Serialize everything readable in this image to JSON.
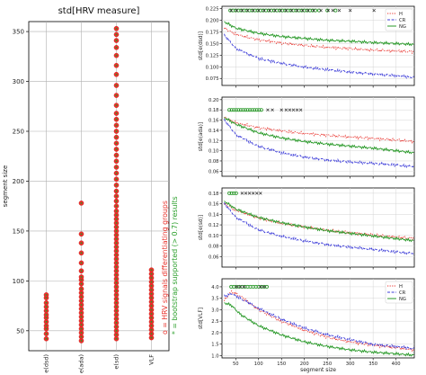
{
  "chart_data": [
    {
      "type": "scatter",
      "title": "std[HRV measure]",
      "xlabel": "",
      "ylabel": "segment size",
      "categories": [
        "e(dsd)",
        "e(ada)",
        "e(sd)",
        "VLF"
      ],
      "ylim": [
        30,
        360
      ],
      "yticks": [
        50,
        100,
        150,
        200,
        250,
        300,
        350
      ],
      "grid": true,
      "annotations": [
        {
          "text": "o = HRV signals differentiating groups",
          "color": "#e8302a"
        },
        {
          "text": "* = bootstrap supported (> 0.7) results",
          "color": "#2ca02c"
        }
      ],
      "series": [
        {
          "values": [
            [
              0,
              42
            ],
            [
              0,
              47
            ],
            [
              0,
              52
            ],
            [
              0,
              55
            ],
            [
              0,
              59
            ],
            [
              0,
              63
            ],
            [
              0,
              66
            ],
            [
              0,
              70
            ],
            [
              0,
              74
            ],
            [
              0,
              78
            ],
            [
              0,
              83
            ],
            [
              0,
              86
            ],
            [
              1,
              40
            ],
            [
              1,
              44
            ],
            [
              1,
              48
            ],
            [
              1,
              52
            ],
            [
              1,
              56
            ],
            [
              1,
              60
            ],
            [
              1,
              64
            ],
            [
              1,
              68
            ],
            [
              1,
              72
            ],
            [
              1,
              76
            ],
            [
              1,
              80
            ],
            [
              1,
              84
            ],
            [
              1,
              88
            ],
            [
              1,
              92
            ],
            [
              1,
              97
            ],
            [
              1,
              101
            ],
            [
              1,
              104
            ],
            [
              1,
              110
            ],
            [
              1,
              118
            ],
            [
              1,
              128
            ],
            [
              1,
              138
            ],
            [
              1,
              147
            ],
            [
              1,
              178
            ],
            [
              2,
              42
            ],
            [
              2,
              46
            ],
            [
              2,
              50
            ],
            [
              2,
              54
            ],
            [
              2,
              58
            ],
            [
              2,
              62
            ],
            [
              2,
              66
            ],
            [
              2,
              70
            ],
            [
              2,
              74
            ],
            [
              2,
              78
            ],
            [
              2,
              82
            ],
            [
              2,
              86
            ],
            [
              2,
              90
            ],
            [
              2,
              94
            ],
            [
              2,
              98
            ],
            [
              2,
              102
            ],
            [
              2,
              106
            ],
            [
              2,
              110
            ],
            [
              2,
              114
            ],
            [
              2,
              118
            ],
            [
              2,
              122
            ],
            [
              2,
              126
            ],
            [
              2,
              130
            ],
            [
              2,
              134
            ],
            [
              2,
              138
            ],
            [
              2,
              142
            ],
            [
              2,
              146
            ],
            [
              2,
              150
            ],
            [
              2,
              154
            ],
            [
              2,
              158
            ],
            [
              2,
              162
            ],
            [
              2,
              166
            ],
            [
              2,
              170
            ],
            [
              2,
              175
            ],
            [
              2,
              180
            ],
            [
              2,
              185
            ],
            [
              2,
              190
            ],
            [
              2,
              196
            ],
            [
              2,
              202
            ],
            [
              2,
              208
            ],
            [
              2,
              214
            ],
            [
              2,
              220
            ],
            [
              2,
              226
            ],
            [
              2,
              232
            ],
            [
              2,
              238
            ],
            [
              2,
              244
            ],
            [
              2,
              250
            ],
            [
              2,
              256
            ],
            [
              2,
              262
            ],
            [
              2,
              268
            ],
            [
              2,
              276
            ],
            [
              2,
              286
            ],
            [
              2,
              296
            ],
            [
              2,
              307
            ],
            [
              2,
              316
            ],
            [
              2,
              326
            ],
            [
              2,
              334
            ],
            [
              2,
              341
            ],
            [
              2,
              347
            ],
            [
              2,
              353
            ],
            [
              3,
              43
            ],
            [
              3,
              47
            ],
            [
              3,
              51
            ],
            [
              3,
              55
            ],
            [
              3,
              59
            ],
            [
              3,
              63
            ],
            [
              3,
              67
            ],
            [
              3,
              71
            ],
            [
              3,
              75
            ],
            [
              3,
              79
            ],
            [
              3,
              83
            ],
            [
              3,
              87
            ],
            [
              3,
              91
            ],
            [
              3,
              95
            ],
            [
              3,
              99
            ],
            [
              3,
              103
            ],
            [
              3,
              107
            ],
            [
              3,
              111
            ]
          ]
        }
      ]
    },
    {
      "type": "line",
      "title": "",
      "xlabel": "",
      "ylabel": "std[e(dsd)]",
      "xlim": [
        20,
        440
      ],
      "ylim": [
        0.06,
        0.23
      ],
      "yticks": [
        0.075,
        0.1,
        0.125,
        0.15,
        0.175,
        0.2,
        0.225
      ],
      "xticks": [
        50,
        100,
        150,
        200,
        250,
        300,
        350,
        400
      ],
      "legend": "top-right",
      "series": [
        {
          "name": "H",
          "color": "#e8302a",
          "style": "dotted",
          "x": [
            25,
            50,
            100,
            150,
            200,
            250,
            300,
            350,
            400,
            440
          ],
          "values": [
            0.183,
            0.17,
            0.158,
            0.151,
            0.146,
            0.142,
            0.139,
            0.136,
            0.134,
            0.132
          ]
        },
        {
          "name": "CR",
          "color": "#3b3bd8",
          "style": "dashed",
          "x": [
            25,
            50,
            100,
            150,
            200,
            250,
            300,
            350,
            400,
            440
          ],
          "values": [
            0.168,
            0.14,
            0.118,
            0.107,
            0.099,
            0.094,
            0.089,
            0.085,
            0.081,
            0.077
          ]
        },
        {
          "name": "NG",
          "color": "#2a9a2a",
          "style": "solid",
          "x": [
            25,
            50,
            100,
            150,
            200,
            250,
            300,
            350,
            400,
            440
          ],
          "values": [
            0.197,
            0.183,
            0.172,
            0.165,
            0.161,
            0.157,
            0.155,
            0.152,
            0.15,
            0.148
          ]
        }
      ],
      "markers": {
        "y": 0.221,
        "green_o": [
          38,
          44,
          50,
          56,
          62,
          68,
          74,
          80,
          86,
          92,
          98,
          104,
          110,
          116,
          122,
          128,
          134,
          140,
          146,
          152,
          158,
          164,
          170,
          176,
          182,
          188,
          194,
          200,
          206,
          212,
          218,
          224,
          232,
          250,
          268
        ],
        "crosses": [
          40,
          52,
          64,
          76,
          88,
          100,
          112,
          124,
          136,
          148,
          160,
          172,
          184,
          196,
          208,
          220,
          236,
          252,
          262,
          276,
          300,
          352
        ]
      }
    },
    {
      "type": "line",
      "title": "",
      "xlabel": "",
      "ylabel": "std[e(ada)]",
      "xlim": [
        20,
        440
      ],
      "ylim": [
        0.05,
        0.205
      ],
      "yticks": [
        0.06,
        0.08,
        0.1,
        0.12,
        0.14,
        0.16,
        0.18,
        0.2
      ],
      "xticks": [
        50,
        100,
        150,
        200,
        250,
        300,
        350,
        400
      ],
      "series": [
        {
          "name": "H",
          "color": "#e8302a",
          "style": "dotted",
          "x": [
            25,
            50,
            100,
            150,
            200,
            250,
            300,
            350,
            400,
            440
          ],
          "values": [
            0.165,
            0.155,
            0.145,
            0.139,
            0.134,
            0.13,
            0.127,
            0.124,
            0.121,
            0.118
          ]
        },
        {
          "name": "CR",
          "color": "#3b3bd8",
          "style": "dashed",
          "x": [
            25,
            50,
            100,
            150,
            200,
            250,
            300,
            350,
            400,
            440
          ],
          "values": [
            0.16,
            0.132,
            0.108,
            0.096,
            0.088,
            0.082,
            0.078,
            0.075,
            0.072,
            0.069
          ]
        },
        {
          "name": "NG",
          "color": "#2a9a2a",
          "style": "solid",
          "x": [
            25,
            50,
            100,
            150,
            200,
            250,
            300,
            350,
            400,
            440
          ],
          "values": [
            0.165,
            0.152,
            0.135,
            0.125,
            0.118,
            0.113,
            0.109,
            0.105,
            0.1,
            0.096
          ]
        }
      ],
      "markers": {
        "y": 0.18,
        "green_o": [
          36,
          41,
          46,
          51,
          56,
          61,
          66,
          71,
          76,
          81,
          86,
          91,
          96,
          101,
          106
        ],
        "crosses": [
          120,
          130,
          150,
          160,
          168,
          176,
          184,
          192
        ]
      }
    },
    {
      "type": "line",
      "title": "",
      "xlabel": "",
      "ylabel": "std[e(sd)]",
      "xlim": [
        20,
        440
      ],
      "ylim": [
        0.04,
        0.19
      ],
      "yticks": [
        0.06,
        0.08,
        0.1,
        0.12,
        0.14,
        0.16,
        0.18
      ],
      "xticks": [
        50,
        100,
        150,
        200,
        250,
        300,
        350,
        400
      ],
      "series": [
        {
          "name": "H",
          "color": "#e8302a",
          "style": "dotted",
          "x": [
            25,
            50,
            100,
            150,
            200,
            250,
            300,
            350,
            400,
            440
          ],
          "values": [
            0.16,
            0.148,
            0.133,
            0.123,
            0.116,
            0.11,
            0.105,
            0.101,
            0.097,
            0.094
          ]
        },
        {
          "name": "CR",
          "color": "#3b3bd8",
          "style": "dashed",
          "x": [
            25,
            50,
            100,
            150,
            200,
            250,
            300,
            350,
            400,
            440
          ],
          "values": [
            0.16,
            0.135,
            0.11,
            0.098,
            0.09,
            0.083,
            0.078,
            0.073,
            0.069,
            0.066
          ]
        },
        {
          "name": "NG",
          "color": "#2a9a2a",
          "style": "solid",
          "x": [
            25,
            50,
            100,
            150,
            200,
            250,
            300,
            350,
            400,
            440
          ],
          "values": [
            0.165,
            0.15,
            0.134,
            0.124,
            0.116,
            0.109,
            0.104,
            0.099,
            0.094,
            0.09
          ]
        }
      ],
      "markers": {
        "y": 0.18,
        "green_o": [
          36,
          41,
          46,
          51
        ],
        "crosses": [
          64,
          72,
          80,
          88,
          96,
          104
        ]
      }
    },
    {
      "type": "line",
      "title": "",
      "xlabel": "segment size",
      "ylabel": "std[VLF]",
      "xlim": [
        20,
        440
      ],
      "ylim": [
        0.9,
        4.35
      ],
      "yticks": [
        1.0,
        1.5,
        2.0,
        2.5,
        3.0,
        3.5,
        4.0
      ],
      "xticks": [
        50,
        100,
        150,
        200,
        250,
        300,
        350,
        400
      ],
      "xticklabels": [
        "50",
        "100",
        "150",
        "200",
        "250",
        "300",
        "350",
        "400"
      ],
      "legend": "top-right",
      "series": [
        {
          "name": "H",
          "color": "#e8302a",
          "style": "dotted",
          "x": [
            25,
            40,
            60,
            100,
            150,
            200,
            250,
            300,
            350,
            400,
            440
          ],
          "values": [
            3.4,
            3.8,
            3.6,
            3.0,
            2.5,
            2.1,
            1.8,
            1.6,
            1.45,
            1.35,
            1.25
          ]
        },
        {
          "name": "CR",
          "color": "#3b3bd8",
          "style": "dashed",
          "x": [
            25,
            40,
            60,
            100,
            150,
            200,
            250,
            300,
            350,
            400,
            440
          ],
          "values": [
            3.6,
            3.7,
            3.5,
            3.05,
            2.6,
            2.2,
            1.9,
            1.7,
            1.5,
            1.4,
            1.3
          ]
        },
        {
          "name": "NG",
          "color": "#2a9a2a",
          "style": "solid",
          "x": [
            25,
            40,
            60,
            100,
            150,
            200,
            250,
            300,
            350,
            400,
            440
          ],
          "values": [
            3.3,
            3.2,
            2.8,
            2.3,
            1.9,
            1.6,
            1.4,
            1.25,
            1.15,
            1.08,
            1.02
          ]
        }
      ],
      "markers": {
        "y": 4.0,
        "green_o": [
          40,
          46,
          52,
          58,
          64,
          70,
          76,
          82,
          88,
          94,
          100,
          106,
          112,
          118
        ],
        "crosses": [
          52,
          60,
          68,
          104,
          112
        ]
      }
    }
  ]
}
